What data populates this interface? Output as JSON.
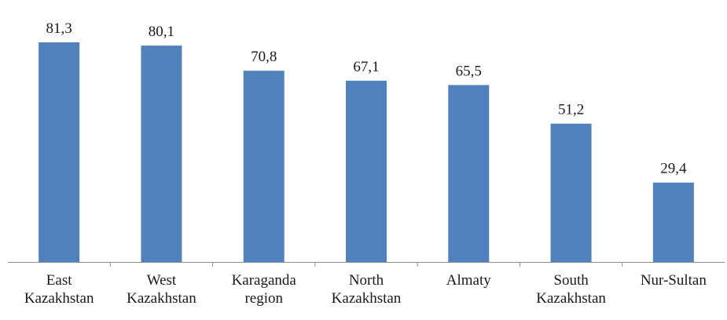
{
  "chart_data": {
    "type": "bar",
    "categories": [
      [
        "East",
        "Kazakhstan"
      ],
      [
        "West",
        "Kazakhstan"
      ],
      [
        "Karaganda",
        "region"
      ],
      [
        "North",
        "Kazakhstan"
      ],
      [
        "Almaty"
      ],
      [
        "South",
        "Kazakhstan"
      ],
      [
        "Nur-Sultan"
      ]
    ],
    "values": [
      81.3,
      80.1,
      70.8,
      67.1,
      65.5,
      51.2,
      29.4
    ],
    "value_labels": [
      "81,3",
      "80,1",
      "70,8",
      "67,1",
      "65,5",
      "51,2",
      "29,4"
    ],
    "ylim": [
      0,
      81.3
    ],
    "bar_color": "#4f81bd",
    "grid": false,
    "legend": "none"
  }
}
